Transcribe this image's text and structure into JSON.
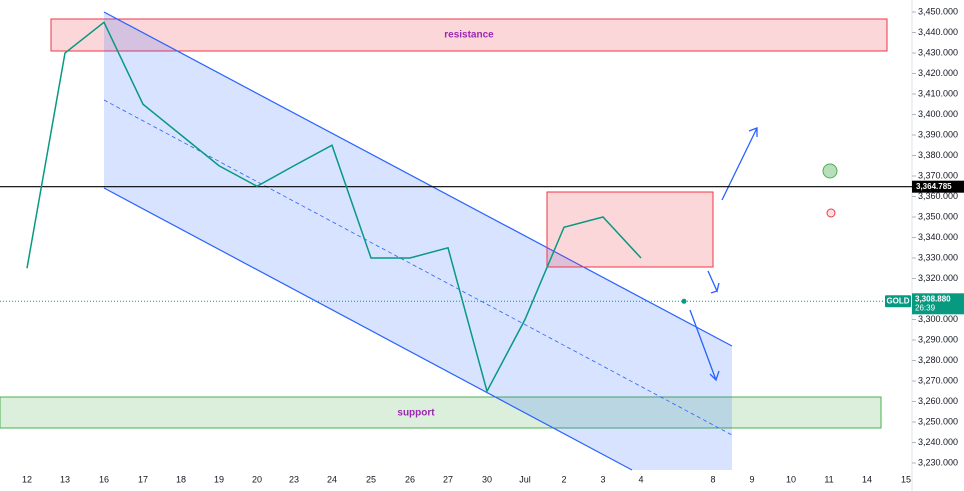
{
  "chart_data": {
    "type": "line",
    "categories": [
      "12",
      "13",
      "16",
      "17",
      "18",
      "19",
      "20",
      "23",
      "24",
      "25",
      "26",
      "27",
      "30",
      "Jul",
      "2",
      "3",
      "4",
      "8",
      "9",
      "10",
      "11",
      "14",
      "15"
    ],
    "series": [
      {
        "name": "GOLD",
        "color": "#089981",
        "values": [
          3325,
          3430,
          3445,
          3405,
          3390,
          3375,
          3365,
          3375,
          3385,
          3330,
          3330,
          3335,
          3265,
          3300,
          3345,
          3350,
          3330,
          null,
          null,
          null,
          null,
          null,
          null
        ]
      }
    ],
    "last_price": {
      "value": 3308.88,
      "label": "3,308.880",
      "countdown": "26:39",
      "color": "#089981"
    },
    "level": {
      "value": 3364.785,
      "label": "3,364.785"
    },
    "zones": {
      "resistance": "resistance",
      "support": "support"
    },
    "ylim": [
      3225,
      3455
    ],
    "yticks": [
      {
        "value": 3230,
        "label": "3,230.000"
      },
      {
        "value": 3240,
        "label": "3,240.000"
      },
      {
        "value": 3250,
        "label": "3,250.000"
      },
      {
        "value": 3260,
        "label": "3,260.000"
      },
      {
        "value": 3270,
        "label": "3,270.000"
      },
      {
        "value": 3280,
        "label": "3,280.000"
      },
      {
        "value": 3290,
        "label": "3,290.000"
      },
      {
        "value": 3300,
        "label": "3,300.000"
      },
      {
        "value": 3310,
        "label": "3,310.000"
      },
      {
        "value": 3320,
        "label": "3,320.000"
      },
      {
        "value": 3330,
        "label": "3,330.000"
      },
      {
        "value": 3340,
        "label": "3,340.000"
      },
      {
        "value": 3350,
        "label": "3,350.000"
      },
      {
        "value": 3360,
        "label": "3,360.000"
      },
      {
        "value": 3370,
        "label": "3,370.000"
      },
      {
        "value": 3380,
        "label": "3,380.000"
      },
      {
        "value": 3390,
        "label": "3,390.000"
      },
      {
        "value": 3400,
        "label": "3,400.000"
      },
      {
        "value": 3410,
        "label": "3,410.000"
      },
      {
        "value": 3420,
        "label": "3,420.000"
      },
      {
        "value": 3430,
        "label": "3,430.000"
      },
      {
        "value": 3440,
        "label": "3,440.000"
      },
      {
        "value": 3450,
        "label": "3,450.000"
      }
    ]
  }
}
